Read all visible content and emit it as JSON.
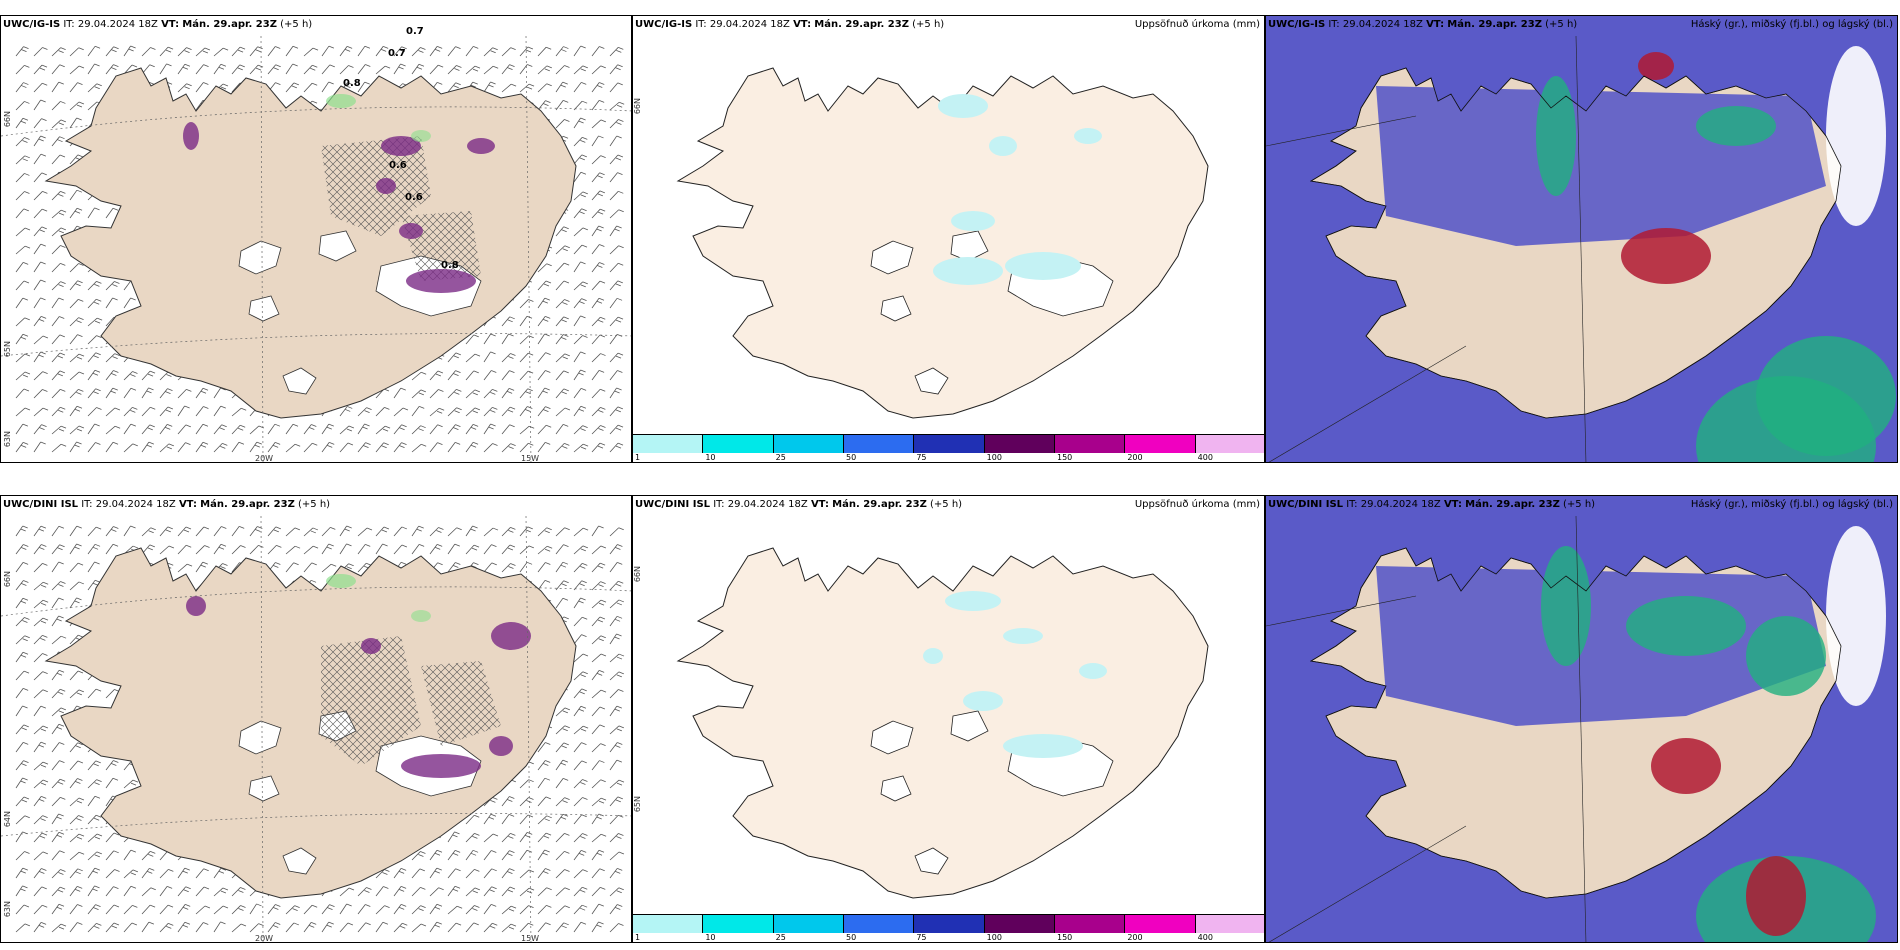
{
  "panels": [
    {
      "id": "p1",
      "model": "UWC/IG-IS",
      "it_label": "IT:",
      "it_value": "29.04.2024 18Z",
      "vt_label": "VT:",
      "vt_value": "Mán. 29.apr. 23Z",
      "lead": "(+5 h)",
      "right_title": "",
      "lat_labels": [
        "66N",
        "65N",
        "63N"
      ],
      "lon_labels": [
        "20W",
        "15W"
      ],
      "values": [
        "0.7",
        "0.7",
        "0.8",
        "0.6",
        "0.6",
        "0.8"
      ]
    },
    {
      "id": "p2",
      "model": "UWC/IG-IS",
      "it_label": "IT:",
      "it_value": "29.04.2024 18Z",
      "vt_label": "VT:",
      "vt_value": "Mán. 29.apr. 23Z",
      "lead": "(+5 h)",
      "right_title": "Uppsöfnuð úrkoma (mm)",
      "lat_labels": [
        "66N"
      ]
    },
    {
      "id": "p3",
      "model": "UWC/IG-IS",
      "it_label": "IT:",
      "it_value": "29.04.2024 18Z",
      "vt_label": "VT:",
      "vt_value": "Mán. 29.apr. 23Z",
      "lead": "(+5 h)",
      "right_title": "Háský (gr.), miðský (fj.bl.) og lágský (bl.)"
    },
    {
      "id": "p4",
      "model": "UWC/DINI ISL",
      "it_label": "IT:",
      "it_value": "29.04.2024 18Z",
      "vt_label": "VT:",
      "vt_value": "Mán. 29.apr. 23Z",
      "lead": "(+5 h)",
      "right_title": "",
      "lat_labels": [
        "66N",
        "64N",
        "63N"
      ],
      "lon_labels": [
        "20W",
        "15W"
      ]
    },
    {
      "id": "p5",
      "model": "UWC/DINI ISL",
      "it_label": "IT:",
      "it_value": "29.04.2024 18Z",
      "vt_label": "VT:",
      "vt_value": "Mán. 29.apr. 23Z",
      "lead": "(+5 h)",
      "right_title": "Uppsöfnuð úrkoma (mm)",
      "lat_labels": [
        "66N",
        "65N"
      ]
    },
    {
      "id": "p6",
      "model": "UWC/DINI ISL",
      "it_label": "IT:",
      "it_value": "29.04.2024 18Z",
      "vt_label": "VT:",
      "vt_value": "Mán. 29.apr. 23Z",
      "lead": "(+5 h)",
      "right_title": "Háský (gr.), miðský (fj.bl.) og lágský (bl.)"
    }
  ],
  "colorbar": {
    "ticks": [
      "1",
      "10",
      "25",
      "50",
      "75",
      "100",
      "150",
      "200",
      "400"
    ],
    "colors": [
      "#b4f5f5",
      "#00e8e8",
      "#00c8ec",
      "#2c6cf0",
      "#2030b4",
      "#60005c",
      "#a8008c",
      "#f000c0",
      "#f0b4f0"
    ]
  },
  "colors": {
    "land": "#e9d7c4",
    "land_light": "#faeee2",
    "ocean": "#ffffff",
    "lowcloud": "#5a5ac8",
    "midcloud": "#20b080",
    "highcloud_red": "#b01a32",
    "precip_cyan": "#c4f2f4",
    "precip_purple": "#7a2a86"
  }
}
